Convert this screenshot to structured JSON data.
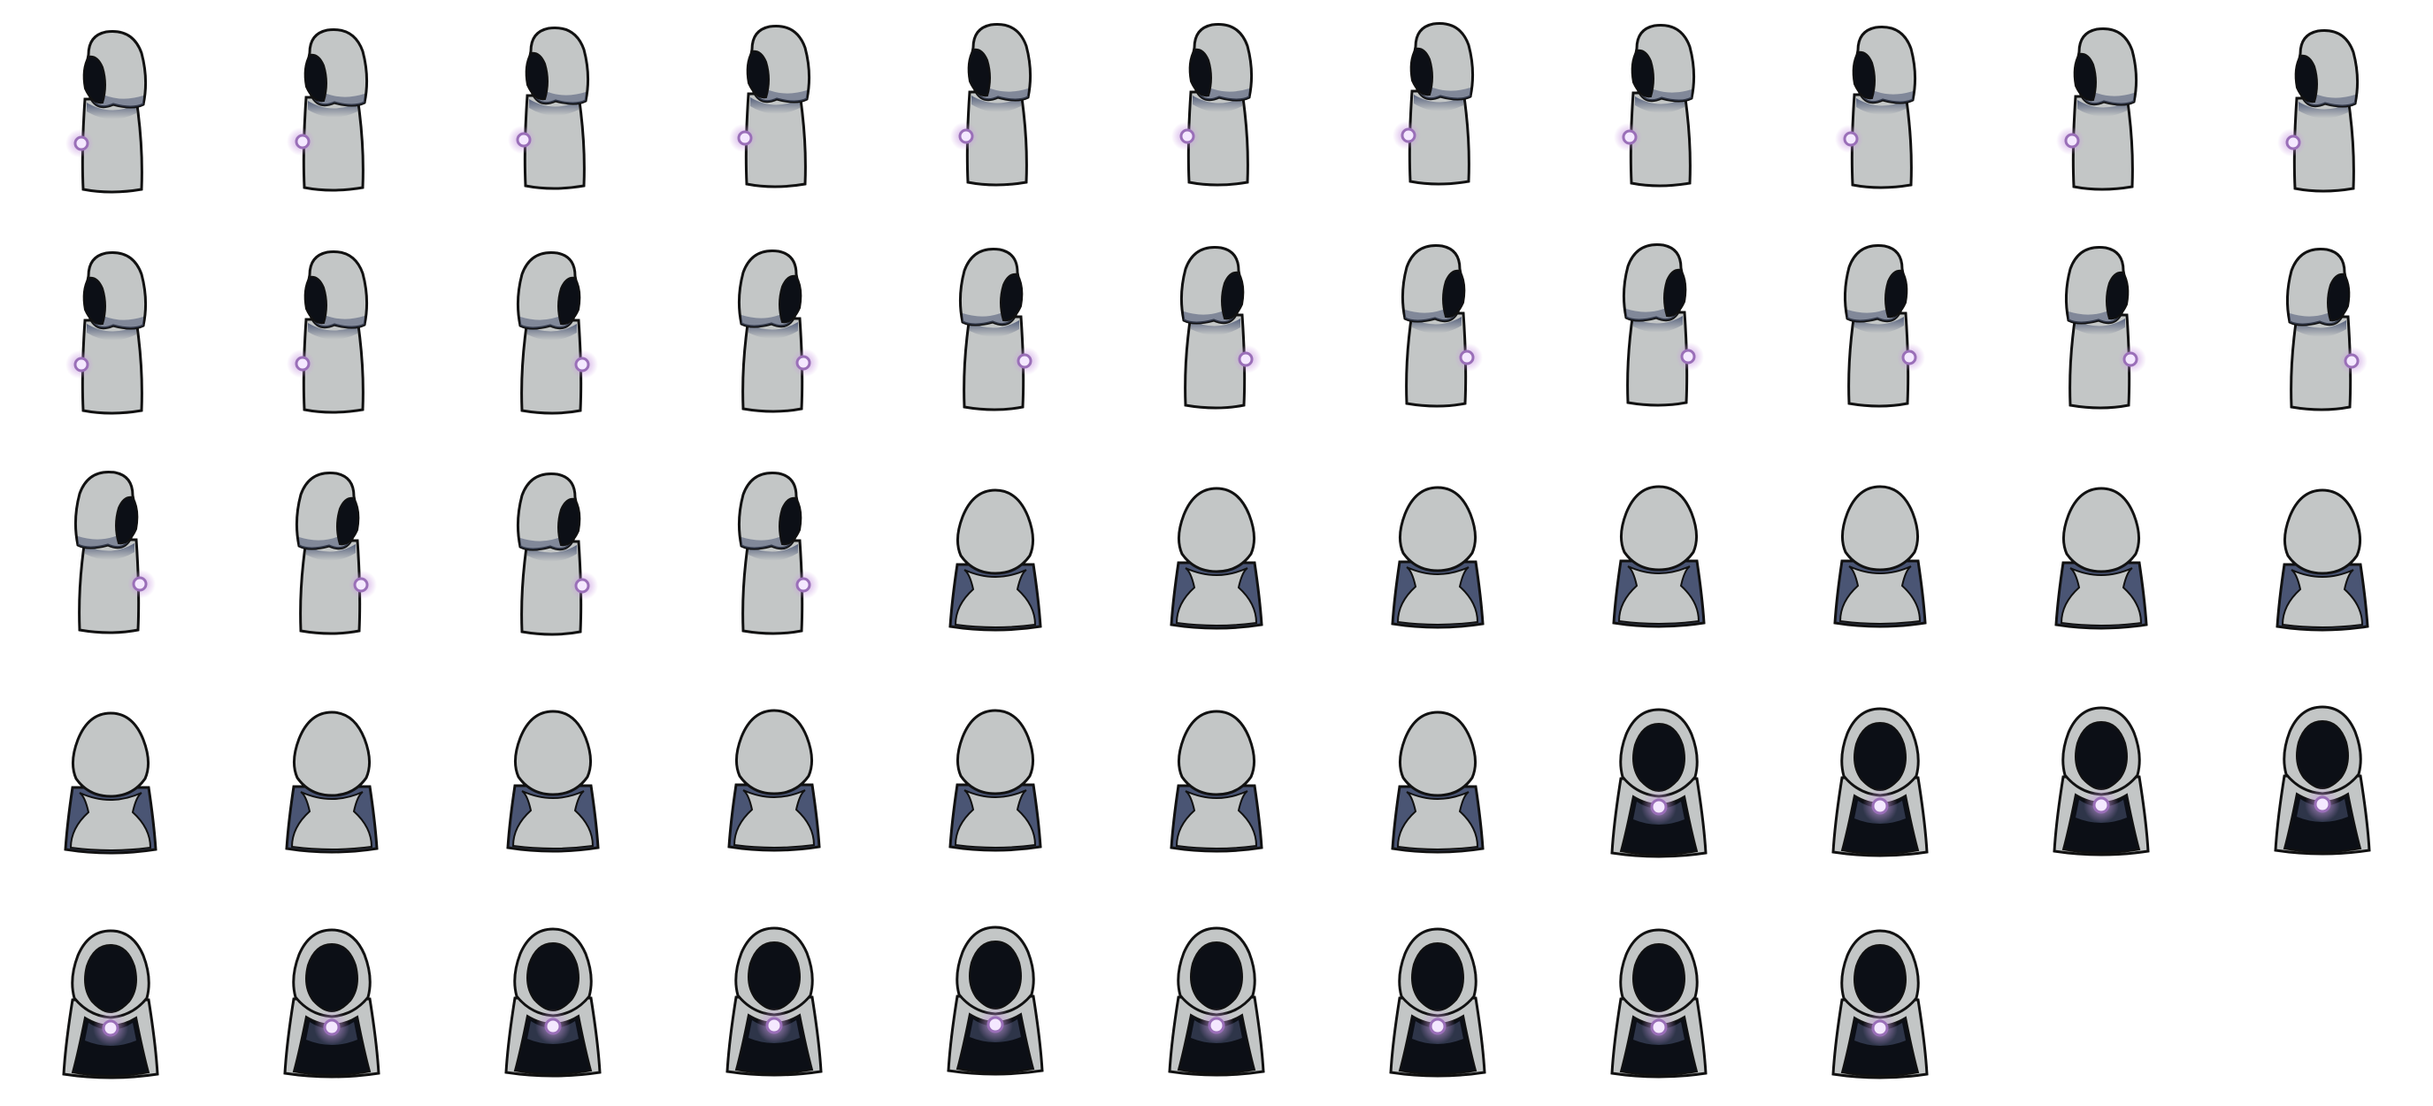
{
  "sheet": {
    "columns": 11,
    "rows": 5,
    "frame_count": 53,
    "background": "#ffffff"
  },
  "colors": {
    "cloak": "#c3c6c6",
    "cloak_shade": "#4a5574",
    "outline": "#111111",
    "hood_inner": "#0c0f16",
    "orb_glow": "#c89be0",
    "orb_core": "#f4e8ff",
    "orb_ring": "#9a6fb8"
  },
  "animations": [
    {
      "name": "side-left-idle",
      "view": "side-left",
      "frames": 13
    },
    {
      "name": "side-right-idle",
      "view": "side-right",
      "frames": 13
    },
    {
      "name": "back-idle",
      "view": "back",
      "frames": 14
    },
    {
      "name": "front-idle",
      "view": "front",
      "frames": 13
    }
  ],
  "frames": [
    {
      "view": "side-left",
      "bob": 0
    },
    {
      "view": "side-left",
      "bob": -2
    },
    {
      "view": "side-left",
      "bob": -4
    },
    {
      "view": "side-left",
      "bob": -6
    },
    {
      "view": "side-left",
      "bob": -8
    },
    {
      "view": "side-left",
      "bob": -8
    },
    {
      "view": "side-left",
      "bob": -9
    },
    {
      "view": "side-left",
      "bob": -7
    },
    {
      "view": "side-left",
      "bob": -5
    },
    {
      "view": "side-left",
      "bob": -3
    },
    {
      "view": "side-left",
      "bob": -1
    },
    {
      "view": "side-left",
      "bob": 0
    },
    {
      "view": "side-left",
      "bob": -1
    },
    {
      "view": "side-right",
      "bob": 0
    },
    {
      "view": "side-right",
      "bob": -2
    },
    {
      "view": "side-right",
      "bob": -4
    },
    {
      "view": "side-right",
      "bob": -6
    },
    {
      "view": "side-right",
      "bob": -8
    },
    {
      "view": "side-right",
      "bob": -9
    },
    {
      "view": "side-right",
      "bob": -8
    },
    {
      "view": "side-right",
      "bob": -6
    },
    {
      "view": "side-right",
      "bob": -4
    },
    {
      "view": "side-right",
      "bob": -2
    },
    {
      "view": "side-right",
      "bob": -1
    },
    {
      "view": "side-right",
      "bob": 0
    },
    {
      "view": "side-right",
      "bob": -1
    },
    {
      "view": "back",
      "bob": -2
    },
    {
      "view": "back",
      "bob": -4
    },
    {
      "view": "back",
      "bob": -5
    },
    {
      "view": "back",
      "bob": -6
    },
    {
      "view": "back",
      "bob": -6
    },
    {
      "view": "back",
      "bob": -4
    },
    {
      "view": "back",
      "bob": -2
    },
    {
      "view": "back",
      "bob": 0
    },
    {
      "view": "back",
      "bob": -1
    },
    {
      "view": "back",
      "bob": -2
    },
    {
      "view": "back",
      "bob": -3
    },
    {
      "view": "back",
      "bob": -3
    },
    {
      "view": "back",
      "bob": -2
    },
    {
      "view": "back",
      "bob": -1
    },
    {
      "view": "front",
      "bob": 0
    },
    {
      "view": "front",
      "bob": -1
    },
    {
      "view": "front",
      "bob": -2
    },
    {
      "view": "front",
      "bob": -3
    },
    {
      "view": "front",
      "bob": 0
    },
    {
      "view": "front",
      "bob": -1
    },
    {
      "view": "front",
      "bob": -2
    },
    {
      "view": "front",
      "bob": -3
    },
    {
      "view": "front",
      "bob": -4
    },
    {
      "view": "front",
      "bob": -3
    },
    {
      "view": "front",
      "bob": -2
    },
    {
      "view": "front",
      "bob": -1
    },
    {
      "view": "front",
      "bob": 0
    }
  ]
}
